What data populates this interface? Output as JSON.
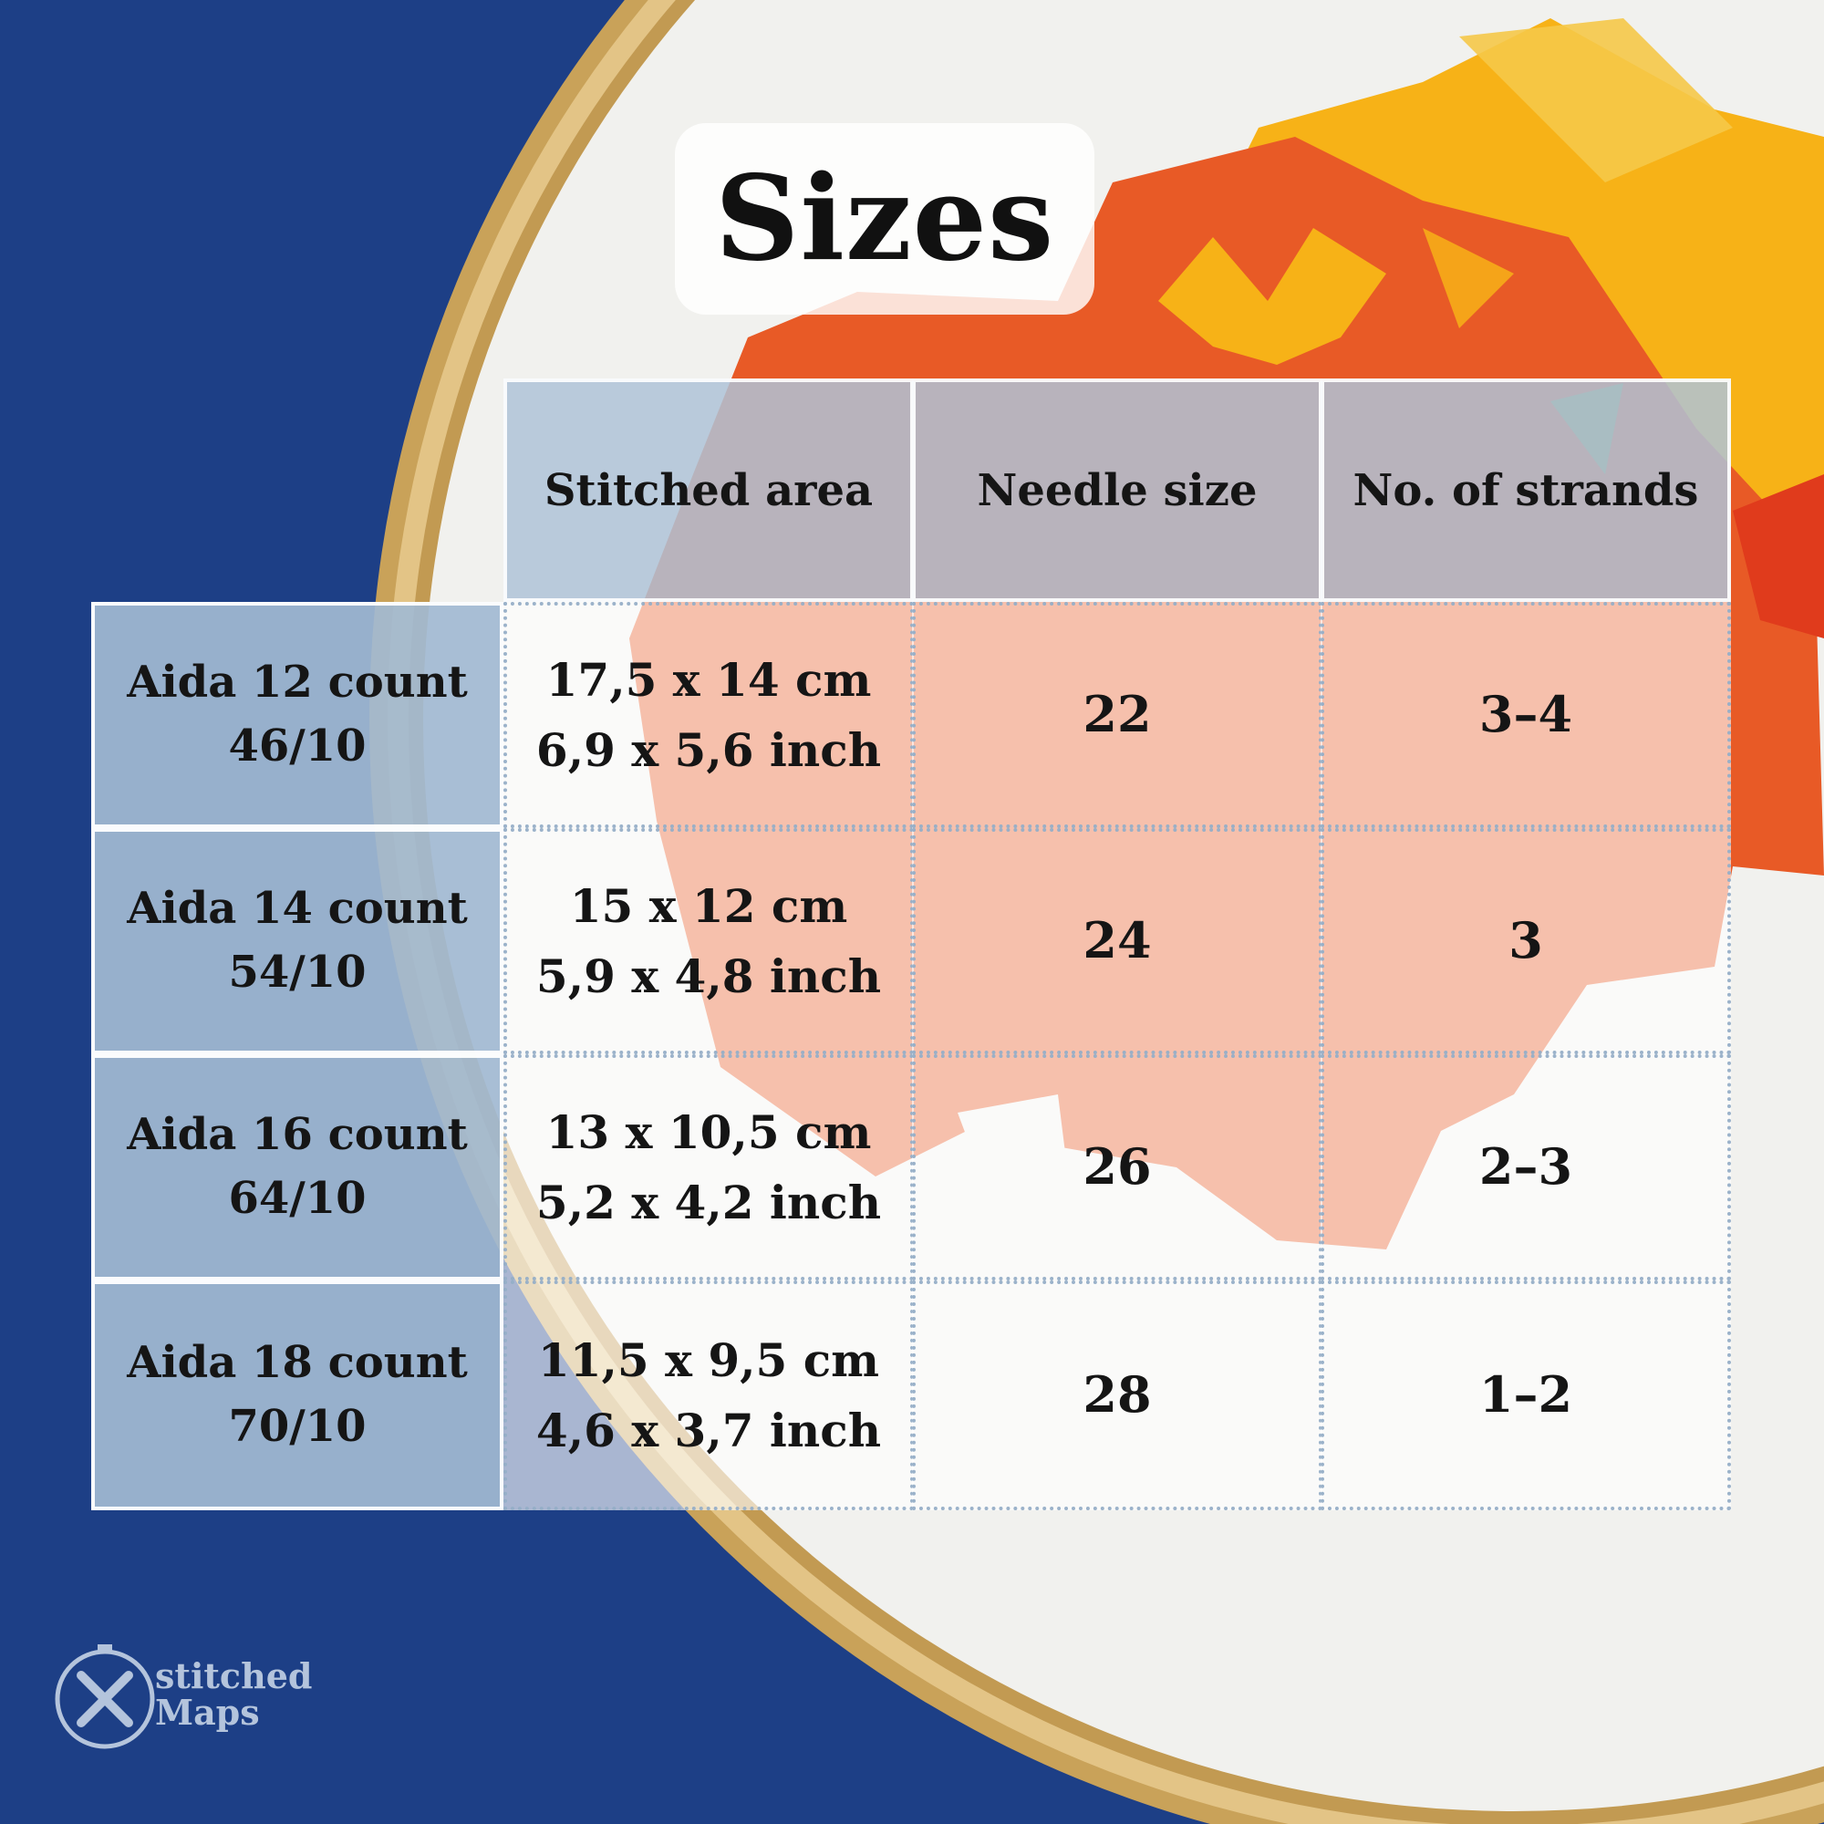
{
  "title": "Sizes",
  "colors": {
    "background": "#1d3f86",
    "hoop": "#d8b56c",
    "fabric": "#f1f1ee",
    "stitch_orange": "#e85a26",
    "stitch_yellow": "#f7b217"
  },
  "table": {
    "columns": [
      "Stitched area",
      "Needle size",
      "No. of strands"
    ],
    "rows": [
      {
        "fabric": "Aida 12 count",
        "ratio": "46/10",
        "area_cm": "17,5 x 14 cm",
        "area_inch": "6,9 x 5,6 inch",
        "needle": "22",
        "strands": "3–4"
      },
      {
        "fabric": "Aida 14 count",
        "ratio": "54/10",
        "area_cm": "15 x 12 cm",
        "area_inch": "5,9 x 4,8 inch",
        "needle": "24",
        "strands": "3"
      },
      {
        "fabric": "Aida 16 count",
        "ratio": "64/10",
        "area_cm": "13 x 10,5 cm",
        "area_inch": "5,2 x 4,2 inch",
        "needle": "26",
        "strands": "2–3"
      },
      {
        "fabric": "Aida 18 count",
        "ratio": "70/10",
        "area_cm": "11,5 x 9,5 cm",
        "area_inch": "4,6 x 3,7 inch",
        "needle": "28",
        "strands": "1–2"
      }
    ]
  },
  "logo": {
    "line1": "stitched",
    "line2": "Maps",
    "icon": "x-circle-icon"
  }
}
